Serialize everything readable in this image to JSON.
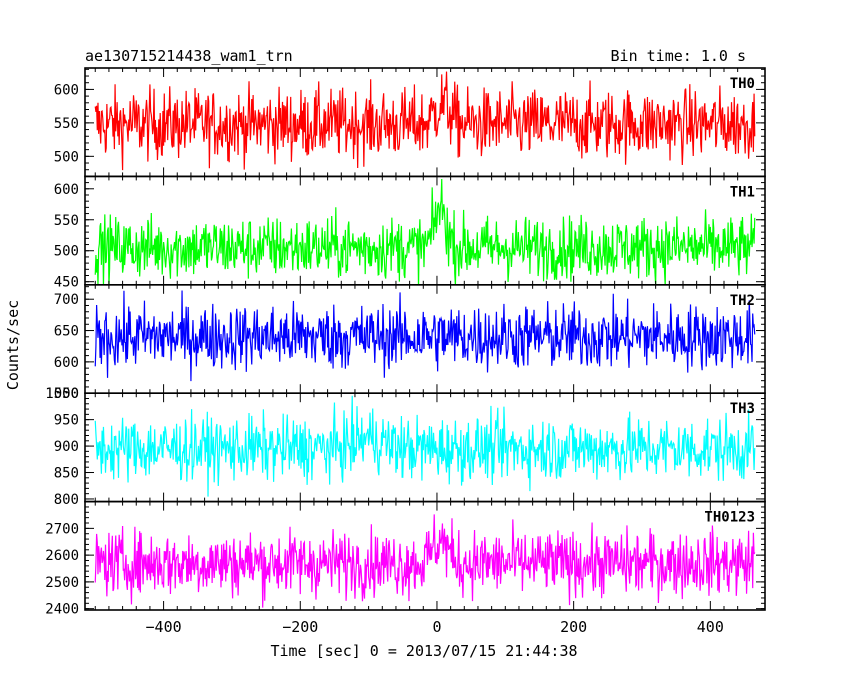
{
  "chart_data": {
    "type": "line",
    "title": "ae130715214438_wam1_trn",
    "subtitle": "Bin time: 1.0 s",
    "xlabel": "Time [sec] 0 = 2013/07/15 21:44:38",
    "ylabel": "Counts/sec",
    "xlim": [
      -515,
      480
    ],
    "x_ticks": [
      "−400",
      "−200",
      "0",
      "200",
      "400"
    ],
    "x_tick_values": [
      -400,
      -200,
      0,
      200,
      400
    ],
    "data_x_range": [
      -500,
      465
    ],
    "bin_time_s": 1.0,
    "panels": [
      {
        "name": "TH0",
        "color": "#ff0000",
        "ylim": [
          470,
          632
        ],
        "yticks": [
          500,
          550,
          600
        ],
        "ytick_labels": [
          "500",
          "550",
          "600"
        ],
        "mean": 548,
        "noise": 26,
        "burst": {
          "center": 8,
          "width": 15,
          "amplitude": 32
        }
      },
      {
        "name": "TH1",
        "color": "#00ff00",
        "ylim": [
          445,
          620
        ],
        "yticks": [
          450,
          500,
          550,
          600
        ],
        "ytick_labels": [
          "450",
          "500",
          "550",
          "600"
        ],
        "mean": 505,
        "noise": 25,
        "burst": {
          "center": 5,
          "width": 12,
          "amplitude": 65
        }
      },
      {
        "name": "TH2",
        "color": "#0000ff",
        "ylim": [
          550,
          723
        ],
        "yticks": [
          550,
          600,
          650,
          700
        ],
        "ytick_labels": [
          "550",
          "600",
          "650",
          "700"
        ],
        "mean": 640,
        "noise": 26,
        "burst": {
          "center": 0,
          "width": 10,
          "amplitude": 0
        }
      },
      {
        "name": "TH3",
        "color": "#00ffff",
        "ylim": [
          795,
          1000
        ],
        "yticks": [
          800,
          850,
          900,
          950,
          1000
        ],
        "ytick_labels": [
          "800",
          "850",
          "900",
          "950",
          "1000"
        ],
        "mean": 895,
        "noise": 30,
        "burst": {
          "center": -100,
          "width": 30,
          "amplitude": 20
        }
      },
      {
        "name": "TH0123",
        "color": "#ff00ff",
        "ylim": [
          2395,
          2800
        ],
        "yticks": [
          2400,
          2500,
          2600,
          2700
        ],
        "ytick_labels": [
          "2400",
          "2500",
          "2600",
          "2700"
        ],
        "mean": 2570,
        "noise": 60,
        "burst": {
          "center": 5,
          "width": 15,
          "amplitude": 90
        }
      }
    ]
  }
}
